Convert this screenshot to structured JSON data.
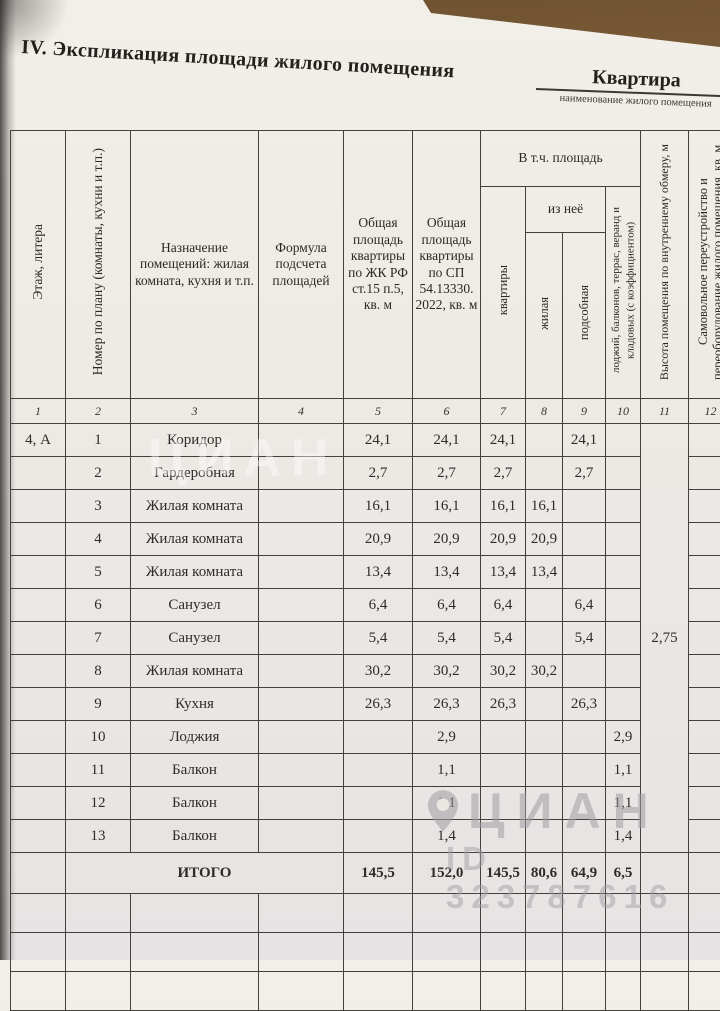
{
  "colors": {
    "surface_brown": "#a57d49",
    "paper": "#edeae5",
    "table_line": "#44413c"
  },
  "header": {
    "section_title": "IV. Экспликация площади жилого помещения",
    "premises_type": "Квартира",
    "premises_caption": "наименование жилого помещения"
  },
  "table": {
    "columns": {
      "col1": "Этаж, литера",
      "col2": "Номер по плану (комнаты, кухни и т.п.)",
      "col3": "Назначение помещений: жилая комната, кухня и т.п.",
      "col4": "Формула подсчета площадей",
      "col5": "Общая площадь квартиры по ЖК РФ ст.15 п.5, кв. м",
      "col6": "Общая площадь квартиры по СП 54.13330. 2022, кв. м",
      "group7_10": "В т.ч. площадь",
      "group8_9": "из неё",
      "col7": "квартиры",
      "col8": "жилая",
      "col9": "подсобная",
      "col10": "лоджий, балконов, террас, веранд и кладовых (с коэффициентом)",
      "col11": "Высота помещения по внутреннему обмеру, м",
      "col12": "Самовольное переустройство и переоборудование жилого помещения, кв. м"
    },
    "column_numbers": [
      "1",
      "2",
      "3",
      "4",
      "5",
      "6",
      "7",
      "8",
      "9",
      "10",
      "11",
      "12"
    ],
    "rows": [
      {
        "floor": "4, А",
        "num": "1",
        "name": "Коридор",
        "formula": "",
        "c5": "24,1",
        "c6": "24,1",
        "c7": "24,1",
        "c8": "",
        "c9": "24,1",
        "c10": "",
        "c12": ""
      },
      {
        "floor": "",
        "num": "2",
        "name": "Гардеробная",
        "formula": "",
        "c5": "2,7",
        "c6": "2,7",
        "c7": "2,7",
        "c8": "",
        "c9": "2,7",
        "c10": "",
        "c12": ""
      },
      {
        "floor": "",
        "num": "3",
        "name": "Жилая комната",
        "formula": "",
        "c5": "16,1",
        "c6": "16,1",
        "c7": "16,1",
        "c8": "16,1",
        "c9": "",
        "c10": "",
        "c12": ""
      },
      {
        "floor": "",
        "num": "4",
        "name": "Жилая комната",
        "formula": "",
        "c5": "20,9",
        "c6": "20,9",
        "c7": "20,9",
        "c8": "20,9",
        "c9": "",
        "c10": "",
        "c12": ""
      },
      {
        "floor": "",
        "num": "5",
        "name": "Жилая комната",
        "formula": "",
        "c5": "13,4",
        "c6": "13,4",
        "c7": "13,4",
        "c8": "13,4",
        "c9": "",
        "c10": "",
        "c12": ""
      },
      {
        "floor": "",
        "num": "6",
        "name": "Санузел",
        "formula": "",
        "c5": "6,4",
        "c6": "6,4",
        "c7": "6,4",
        "c8": "",
        "c9": "6,4",
        "c10": "",
        "c12": ""
      },
      {
        "floor": "",
        "num": "7",
        "name": "Санузел",
        "formula": "",
        "c5": "5,4",
        "c6": "5,4",
        "c7": "5,4",
        "c8": "",
        "c9": "5,4",
        "c10": "",
        "c12": ""
      },
      {
        "floor": "",
        "num": "8",
        "name": "Жилая комната",
        "formula": "",
        "c5": "30,2",
        "c6": "30,2",
        "c7": "30,2",
        "c8": "30,2",
        "c9": "",
        "c10": "",
        "c12": ""
      },
      {
        "floor": "",
        "num": "9",
        "name": "Кухня",
        "formula": "",
        "c5": "26,3",
        "c6": "26,3",
        "c7": "26,3",
        "c8": "",
        "c9": "26,3",
        "c10": "",
        "c12": ""
      },
      {
        "floor": "",
        "num": "10",
        "name": "Лоджия",
        "formula": "",
        "c5": "",
        "c6": "2,9",
        "c7": "",
        "c8": "",
        "c9": "",
        "c10": "2,9",
        "c12": ""
      },
      {
        "floor": "",
        "num": "11",
        "name": "Балкон",
        "formula": "",
        "c5": "",
        "c6": "1,1",
        "c7": "",
        "c8": "",
        "c9": "",
        "c10": "1,1",
        "c12": ""
      },
      {
        "floor": "",
        "num": "12",
        "name": "Балкон",
        "formula": "",
        "c5": "",
        "c6": "1,1",
        "c7": "",
        "c8": "",
        "c9": "",
        "c10": "1,1",
        "c12": ""
      },
      {
        "floor": "",
        "num": "13",
        "name": "Балкон",
        "formula": "",
        "c5": "",
        "c6": "1,4",
        "c7": "",
        "c8": "",
        "c9": "",
        "c10": "1,4",
        "c12": ""
      }
    ],
    "height_value": "2,75",
    "totals": {
      "label": "ИТОГО",
      "c5": "145,5",
      "c6": "152,0",
      "c7": "145,5",
      "c8": "80,6",
      "c9": "64,9",
      "c10": "6,5"
    },
    "empty_rows": 3
  },
  "watermark": {
    "brand": "ЦИАН",
    "brand_faint": "ЦИАН",
    "id_text": "ID 323787616"
  }
}
